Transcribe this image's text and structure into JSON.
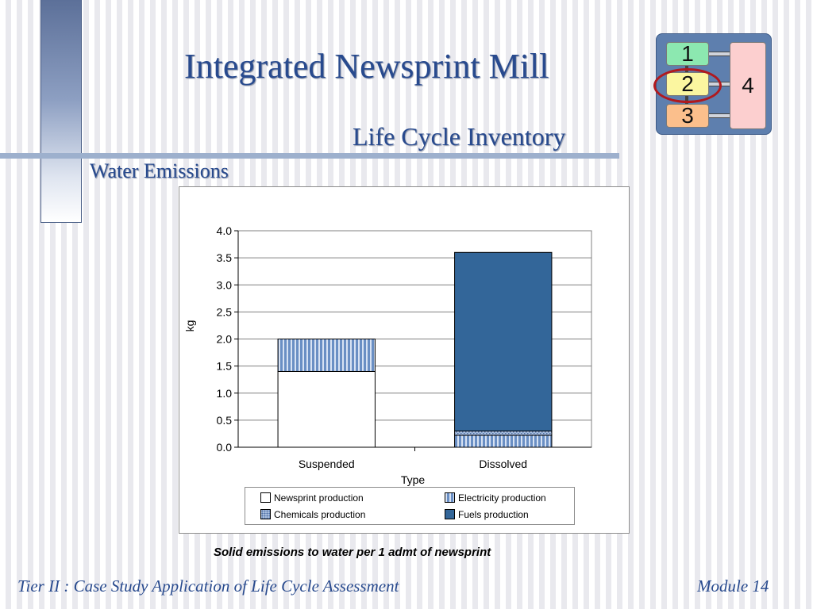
{
  "slide": {
    "title": "Integrated Newsprint Mill",
    "subtitle": "Life Cycle Inventory",
    "section": "Water Emissions",
    "caption": "Solid emissions to water per 1 admt of newsprint",
    "footer_left": "Tier II : Case Study Application of Life Cycle Assessment",
    "footer_right": "Module 14"
  },
  "module_diagram": {
    "boxes": [
      "1",
      "2",
      "3",
      "4"
    ],
    "highlighted": "2",
    "colors": {
      "1": "#8ce8b0",
      "2": "#fbf6a0",
      "3": "#fbbf8c",
      "4": "#fccfcf",
      "ring": "#b0191e"
    }
  },
  "chart_data": {
    "type": "bar",
    "stacked": true,
    "categories": [
      "Suspended",
      "Dissolved"
    ],
    "series": [
      {
        "name": "Newsprint production",
        "values": [
          1.4,
          0.0
        ],
        "color": "#ffffff",
        "pattern": "none"
      },
      {
        "name": "Electricity production",
        "values": [
          0.6,
          0.22
        ],
        "color": "#6a8fc4",
        "pattern": "vertical-stripes"
      },
      {
        "name": "Chemicals production",
        "values": [
          0.0,
          0.08
        ],
        "color": "#a9bfdf",
        "pattern": "dots"
      },
      {
        "name": "Fuels production",
        "values": [
          0.0,
          3.3
        ],
        "color": "#336699",
        "pattern": "none"
      }
    ],
    "xlabel": "Type",
    "ylabel": "kg",
    "ylim": [
      0,
      4.0
    ],
    "yticks": [
      "0.0",
      "0.5",
      "1.0",
      "1.5",
      "2.0",
      "2.5",
      "3.0",
      "3.5",
      "4.0"
    ],
    "grid": true,
    "legend_position": "bottom"
  }
}
